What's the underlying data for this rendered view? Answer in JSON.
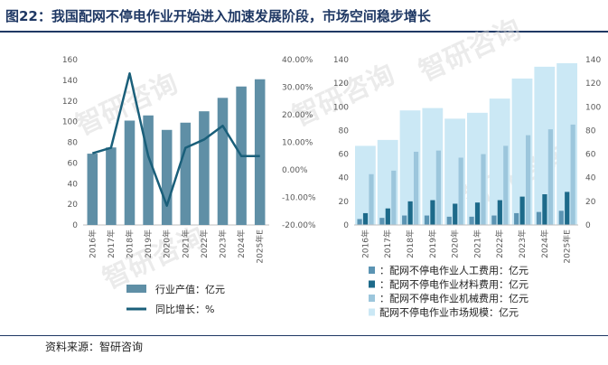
{
  "header": {
    "title": "图22：我国配网不停电作业开始进入加速发展阶段，市场空间稳步增长"
  },
  "footer": {
    "source": "资料来源：智研咨询"
  },
  "watermark": {
    "text": "智研咨询"
  },
  "colors": {
    "bar_left": "#5f8fa6",
    "line_left": "#1a5f7a",
    "labor": "#5b94b3",
    "material": "#1d6a8a",
    "machinery": "#9cc6dc",
    "market": "#cbe8f5"
  },
  "chart_data": [
    {
      "type": "bar",
      "title": "",
      "categories": [
        "2016年",
        "2017年",
        "2018年",
        "2019年",
        "2020年",
        "2021年",
        "2022年",
        "2023年",
        "2024年",
        "2025年E"
      ],
      "series": [
        {
          "name": "行业产值：亿元",
          "type": "bar",
          "axis": "left",
          "values": [
            69,
            75,
            101,
            106,
            92,
            99,
            110,
            123,
            134,
            141
          ]
        },
        {
          "name": "同比增长：%",
          "type": "line",
          "axis": "right",
          "values": [
            6,
            8,
            35,
            5,
            -13,
            8,
            11,
            16,
            5,
            5
          ]
        }
      ],
      "y_left": {
        "min": 0,
        "max": 160,
        "step": 20,
        "ticks": [
          "0",
          "20",
          "40",
          "60",
          "80",
          "100",
          "120",
          "140",
          "160"
        ]
      },
      "y_right": {
        "min": -20,
        "max": 40,
        "step": 10,
        "ticks": [
          "-20.00%",
          "-10.00%",
          "0.00%",
          "10.00%",
          "20.00%",
          "30.00%",
          "40.00%"
        ]
      },
      "legend": [
        "行业产值：亿元",
        "同比增长：%"
      ],
      "legend_position": "bottom"
    },
    {
      "type": "bar",
      "title": "",
      "categories": [
        "2016年",
        "2017年",
        "2018年",
        "2019年",
        "2020年",
        "2021年",
        "2022年",
        "2023年",
        "2024年",
        "2025年E"
      ],
      "series": [
        {
          "name": "：配网不停电作业人工费用：亿元",
          "values": [
            5,
            6,
            8,
            8,
            7,
            7,
            8,
            10,
            11,
            12
          ]
        },
        {
          "name": "：配网不停电作业材料费用：亿元",
          "values": [
            10,
            14,
            20,
            21,
            18,
            19,
            21,
            24,
            26,
            28
          ]
        },
        {
          "name": "：配网不停电作业机械费用：亿元",
          "values": [
            43,
            46,
            62,
            63,
            57,
            60,
            67,
            76,
            81,
            85
          ]
        },
        {
          "name": "配网不停电作业市场规模：亿元",
          "values": [
            67,
            72,
            97,
            99,
            90,
            95,
            107,
            124,
            134,
            137
          ]
        }
      ],
      "y_left": {
        "min": 0,
        "max": 140,
        "step": 20,
        "ticks": [
          "0",
          "20",
          "40",
          "60",
          "80",
          "100",
          "120",
          "140"
        ]
      },
      "y_right": {
        "min": 0,
        "max": 140,
        "step": 20,
        "ticks": [
          "0",
          "20",
          "40",
          "60",
          "80",
          "100",
          "120",
          "140"
        ]
      },
      "legend": [
        "：配网不停电作业人工费用：亿元",
        "：配网不停电作业材料费用：亿元",
        "：配网不停电作业机械费用：亿元",
        "配网不停电作业市场规模：亿元"
      ],
      "legend_position": "bottom"
    }
  ]
}
